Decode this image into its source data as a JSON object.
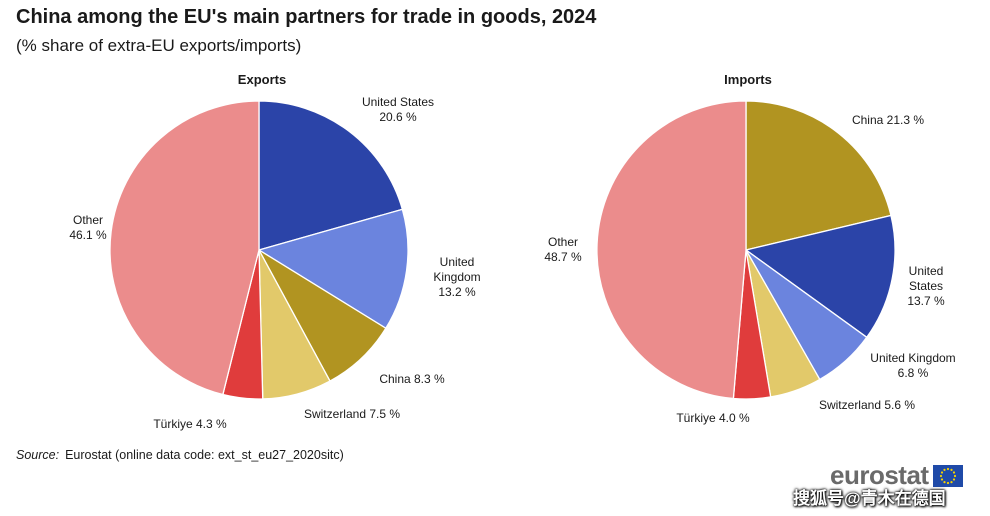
{
  "header": {
    "title": "China among the EU's main partners for trade in goods, 2024",
    "subtitle": "(% share of extra-EU exports/imports)"
  },
  "chart_data": [
    {
      "type": "pie",
      "title": "Exports",
      "slices": [
        {
          "name": "United States",
          "value": 20.6,
          "color": "#2B44A8",
          "label_lines": [
            "United States",
            "20.6 %"
          ]
        },
        {
          "name": "United Kingdom",
          "value": 13.2,
          "color": "#6B84DE",
          "label_lines": [
            "United",
            "Kingdom",
            "13.2 %"
          ]
        },
        {
          "name": "China",
          "value": 8.3,
          "color": "#B19421",
          "label_lines": [
            "China 8.3 %"
          ]
        },
        {
          "name": "Switzerland",
          "value": 7.5,
          "color": "#E2C96A",
          "label_lines": [
            "Switzerland  7.5 %"
          ]
        },
        {
          "name": "Türkiye",
          "value": 4.3,
          "color": "#E03C3C",
          "label_lines": [
            "Türkiye 4.3 %"
          ]
        },
        {
          "name": "Other",
          "value": 46.1,
          "color": "#EB8C8C",
          "label_lines": [
            "Other",
            "46.1 %"
          ]
        }
      ]
    },
    {
      "type": "pie",
      "title": "Imports",
      "slices": [
        {
          "name": "China",
          "value": 21.3,
          "color": "#B19421",
          "label_lines": [
            "China 21.3 %"
          ]
        },
        {
          "name": "United States",
          "value": 13.7,
          "color": "#2B44A8",
          "label_lines": [
            "United",
            "States",
            "13.7 %"
          ]
        },
        {
          "name": "United Kingdom",
          "value": 6.8,
          "color": "#6B84DE",
          "label_lines": [
            "United Kingdom",
            "6.8 %"
          ]
        },
        {
          "name": "Switzerland",
          "value": 5.6,
          "color": "#E2C96A",
          "label_lines": [
            "Switzerland  5.6 %"
          ]
        },
        {
          "name": "Türkiye",
          "value": 4.0,
          "color": "#E03C3C",
          "label_lines": [
            "Türkiye 4.0 %"
          ]
        },
        {
          "name": "Other",
          "value": 48.7,
          "color": "#EB8C8C",
          "label_lines": [
            "Other",
            "48.7 %"
          ]
        }
      ]
    }
  ],
  "footer": {
    "source_label": "Source:",
    "source_text": "Eurostat (online data code: ext_st_eu27_2020sitc)",
    "logo_text": "eurostat",
    "watermark": "搜狐号@青木在德国"
  }
}
